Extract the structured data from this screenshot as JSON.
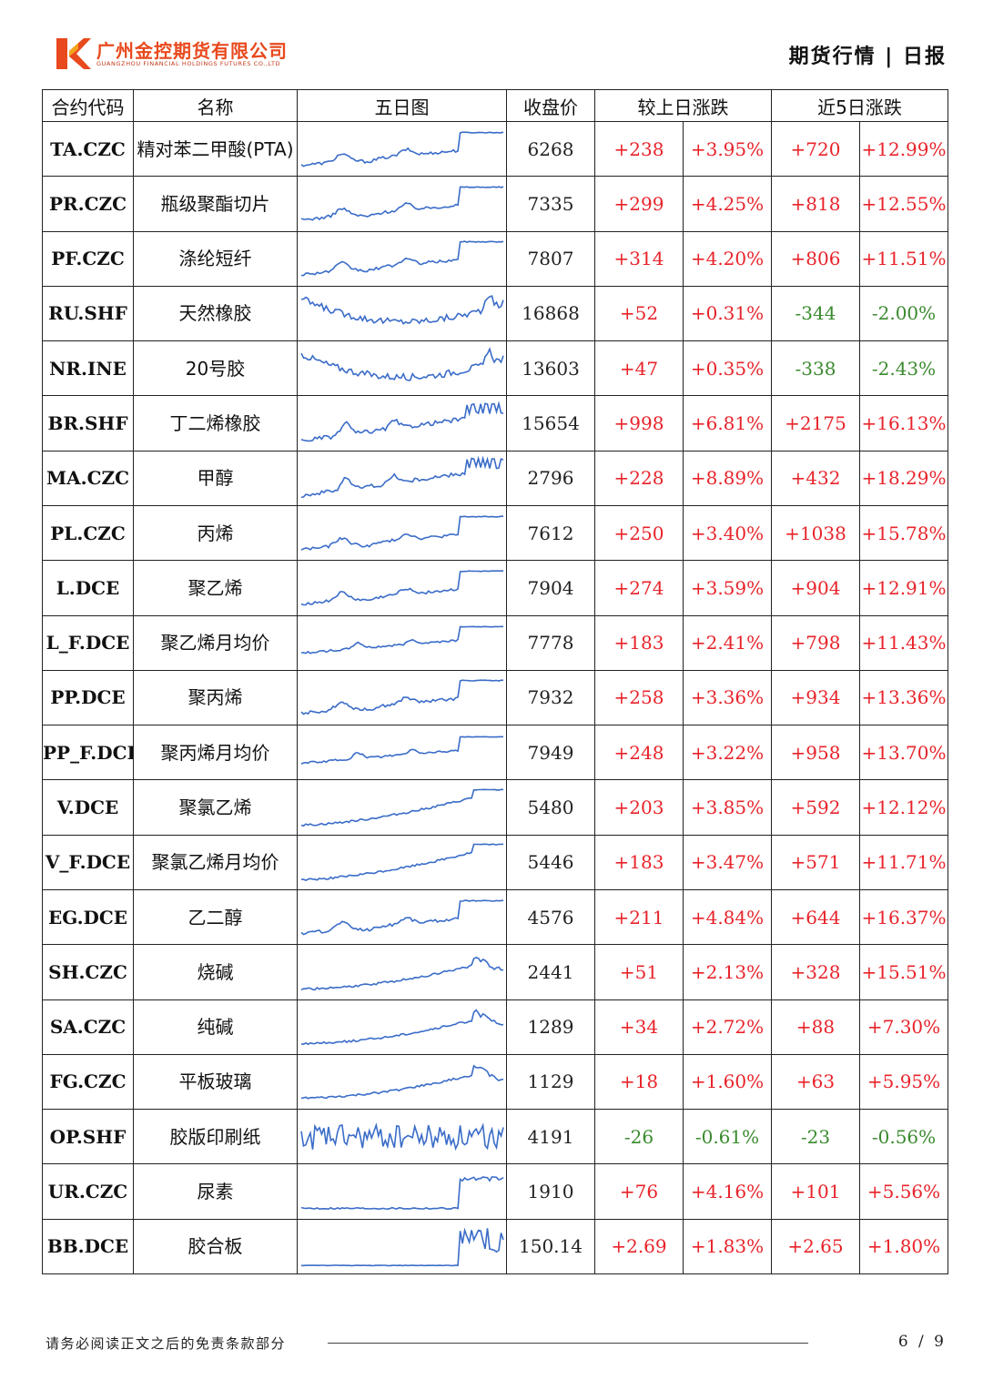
{
  "header": {
    "company_cn": "广州金控期货有限公司",
    "company_en": "GUANGZHOU FINANCIAL HOLDINGS FUTURES CO.,LTD",
    "report_tag": "期货行情 | 日报",
    "brand_color": "#e8491d"
  },
  "table": {
    "headers": {
      "code": "合约代码",
      "name": "名称",
      "chart": "五日图",
      "close": "收盘价",
      "day_change": "较上日涨跌",
      "five_day_change": "近5日涨跌"
    },
    "sparkline_color": "#3a6cc8",
    "up_color": "#e8232a",
    "down_color": "#3a8a2e",
    "rows": [
      {
        "code": "TA.CZC",
        "name": "精对苯二甲酸(PTA)",
        "close": "6268",
        "day_chg": "+238",
        "day_pct": "+3.95%",
        "w5_chg": "+720",
        "w5_pct": "+12.99%",
        "spark": "plat_end"
      },
      {
        "code": "PR.CZC",
        "name": "瓶级聚酯切片",
        "close": "7335",
        "day_chg": "+299",
        "day_pct": "+4.25%",
        "w5_chg": "+818",
        "w5_pct": "+12.55%",
        "spark": "plat_end"
      },
      {
        "code": "PF.CZC",
        "name": "涤纶短纤",
        "close": "7807",
        "day_chg": "+314",
        "day_pct": "+4.20%",
        "w5_chg": "+806",
        "w5_pct": "+11.51%",
        "spark": "plat_end"
      },
      {
        "code": "RU.SHF",
        "name": "天然橡胶",
        "close": "16868",
        "day_chg": "+52",
        "day_pct": "+0.31%",
        "w5_chg": "-344",
        "w5_pct": "-2.00%",
        "spark": "u_shape"
      },
      {
        "code": "NR.INE",
        "name": "20号胶",
        "close": "13603",
        "day_chg": "+47",
        "day_pct": "+0.35%",
        "w5_chg": "-338",
        "w5_pct": "-2.43%",
        "spark": "u_shape"
      },
      {
        "code": "BR.SHF",
        "name": "丁二烯橡胶",
        "close": "15654",
        "day_chg": "+998",
        "day_pct": "+6.81%",
        "w5_chg": "+2175",
        "w5_pct": "+16.13%",
        "spark": "rise_spike"
      },
      {
        "code": "MA.CZC",
        "name": "甲醇",
        "close": "2796",
        "day_chg": "+228",
        "day_pct": "+8.89%",
        "w5_chg": "+432",
        "w5_pct": "+18.29%",
        "spark": "rise_spike"
      },
      {
        "code": "PL.CZC",
        "name": "丙烯",
        "close": "7612",
        "day_chg": "+250",
        "day_pct": "+3.40%",
        "w5_chg": "+1038",
        "w5_pct": "+15.78%",
        "spark": "plat_end"
      },
      {
        "code": "L.DCE",
        "name": "聚乙烯",
        "close": "7904",
        "day_chg": "+274",
        "day_pct": "+3.59%",
        "w5_chg": "+904",
        "w5_pct": "+12.91%",
        "spark": "plat_end"
      },
      {
        "code": "L_F.DCE",
        "name": "聚乙烯月均价",
        "close": "7778",
        "day_chg": "+183",
        "day_pct": "+2.41%",
        "w5_chg": "+798",
        "w5_pct": "+11.43%",
        "spark": "steps"
      },
      {
        "code": "PP.DCE",
        "name": "聚丙烯",
        "close": "7932",
        "day_chg": "+258",
        "day_pct": "+3.36%",
        "w5_chg": "+934",
        "w5_pct": "+13.36%",
        "spark": "plat_end"
      },
      {
        "code": "PP_F.DCE",
        "name": "聚丙烯月均价",
        "close": "7949",
        "day_chg": "+248",
        "day_pct": "+3.22%",
        "w5_chg": "+958",
        "w5_pct": "+13.70%",
        "spark": "steps"
      },
      {
        "code": "V.DCE",
        "name": "聚氯乙烯",
        "close": "5480",
        "day_chg": "+203",
        "day_pct": "+3.85%",
        "w5_chg": "+592",
        "w5_pct": "+12.12%",
        "spark": "smooth_rise"
      },
      {
        "code": "V_F.DCE",
        "name": "聚氯乙烯月均价",
        "close": "5446",
        "day_chg": "+183",
        "day_pct": "+3.47%",
        "w5_chg": "+571",
        "w5_pct": "+11.71%",
        "spark": "smooth_rise"
      },
      {
        "code": "EG.DCE",
        "name": "乙二醇",
        "close": "4576",
        "day_chg": "+211",
        "day_pct": "+4.84%",
        "w5_chg": "+644",
        "w5_pct": "+16.37%",
        "spark": "plat_end"
      },
      {
        "code": "SH.CZC",
        "name": "烧碱",
        "close": "2441",
        "day_chg": "+51",
        "day_pct": "+2.13%",
        "w5_chg": "+328",
        "w5_pct": "+15.51%",
        "spark": "rise_drop"
      },
      {
        "code": "SA.CZC",
        "name": "纯碱",
        "close": "1289",
        "day_chg": "+34",
        "day_pct": "+2.72%",
        "w5_chg": "+88",
        "w5_pct": "+7.30%",
        "spark": "rise_drop"
      },
      {
        "code": "FG.CZC",
        "name": "平板玻璃",
        "close": "1129",
        "day_chg": "+18",
        "day_pct": "+1.60%",
        "w5_chg": "+63",
        "w5_pct": "+5.95%",
        "spark": "rise_drop"
      },
      {
        "code": "OP.SHF",
        "name": "胶版印刷纸",
        "close": "4191",
        "day_chg": "-26",
        "day_pct": "-0.61%",
        "w5_chg": "-23",
        "w5_pct": "-0.56%",
        "spark": "noisy"
      },
      {
        "code": "UR.CZC",
        "name": "尿素",
        "close": "1910",
        "day_chg": "+76",
        "day_pct": "+4.16%",
        "w5_chg": "+101",
        "w5_pct": "+5.56%",
        "spark": "jump"
      },
      {
        "code": "BB.DCE",
        "name": "胶合板",
        "close": "150.14",
        "day_chg": "+2.69",
        "day_pct": "+1.83%",
        "w5_chg": "+2.65",
        "w5_pct": "+1.80%",
        "spark": "flat_burst"
      }
    ]
  },
  "footer": {
    "disclaimer": "请务必阅读正文之后的免责条款部分",
    "page": "6 / 9"
  }
}
